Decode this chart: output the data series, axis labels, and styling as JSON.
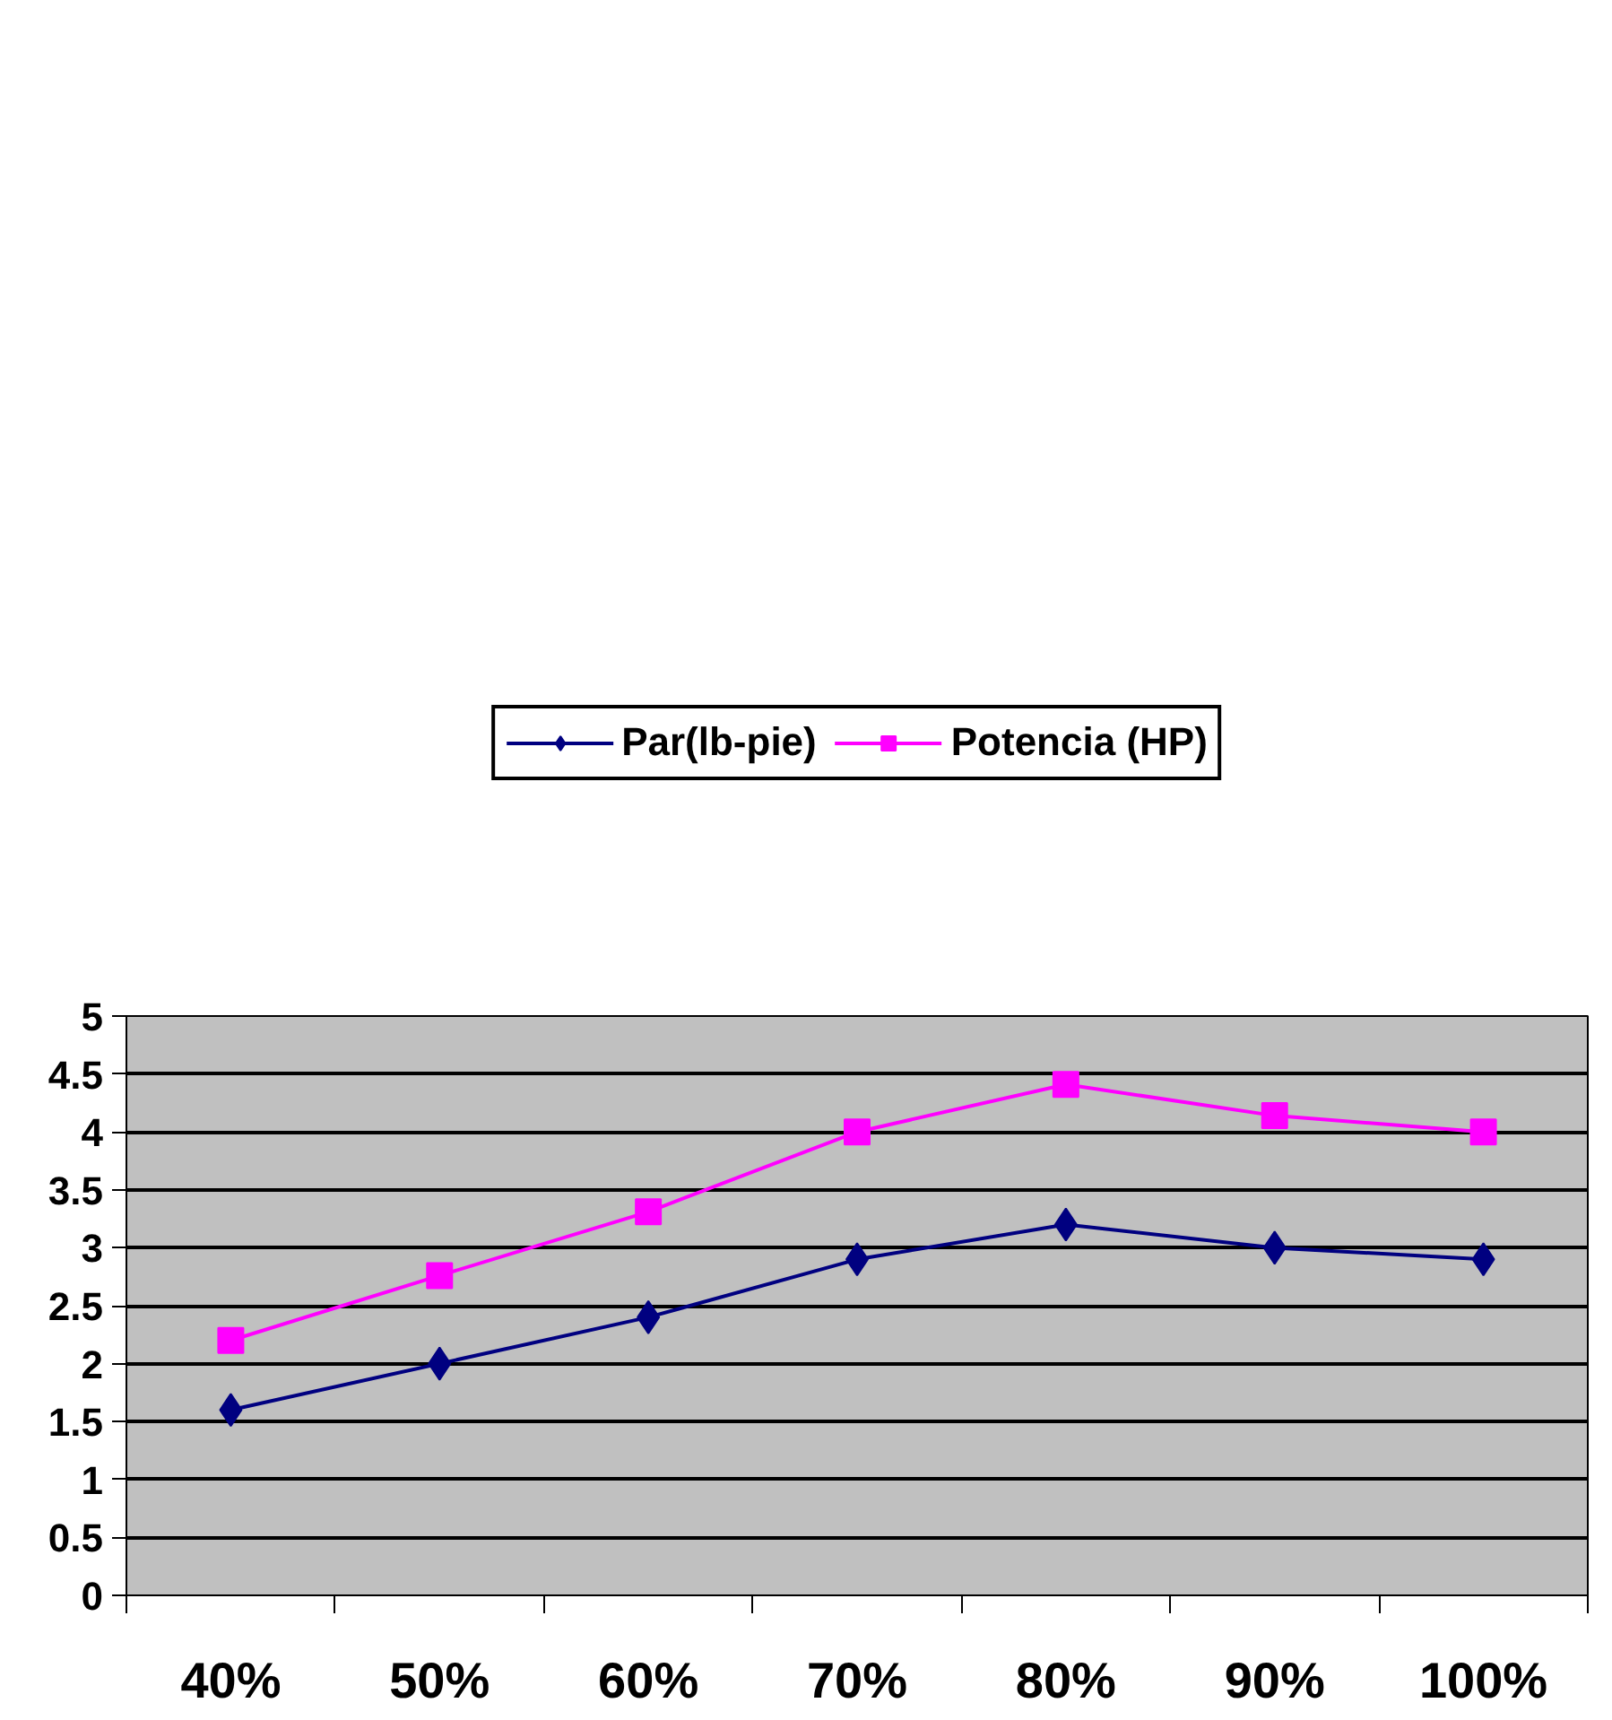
{
  "chart_data": {
    "type": "line",
    "categories": [
      "40%",
      "50%",
      "60%",
      "70%",
      "80%",
      "90%",
      "100%"
    ],
    "series": [
      {
        "name": "Par(lb-pie)",
        "color": "#000080",
        "marker": "diamond",
        "values": [
          1.6,
          2.0,
          2.4,
          2.9,
          3.2,
          3.0,
          2.9
        ]
      },
      {
        "name": "Potencia (HP)",
        "color": "#ff00ff",
        "marker": "square",
        "values": [
          2.2,
          2.76,
          3.31,
          4.0,
          4.41,
          4.14,
          4.0
        ]
      }
    ],
    "ylim": [
      0,
      5
    ],
    "yticks": [
      0,
      0.5,
      1,
      1.5,
      2,
      2.5,
      3,
      3.5,
      4,
      4.5,
      5
    ],
    "grid": "y",
    "legend": "top",
    "line_style": "solid"
  }
}
